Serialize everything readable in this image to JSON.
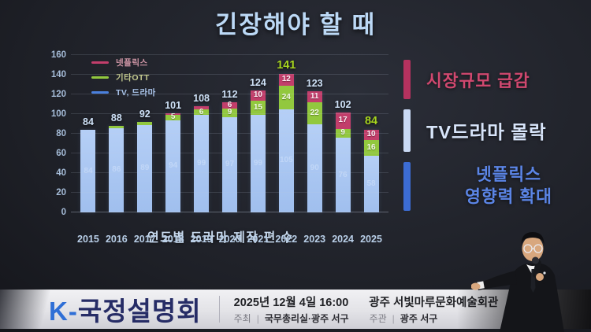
{
  "chart_data": {
    "type": "bar",
    "stacked": true,
    "title": "긴장해야 할 때",
    "xlabel": "연도별 드라마 제작 편 수",
    "ylim": [
      0,
      160
    ],
    "yticks": [
      0,
      20,
      40,
      60,
      80,
      100,
      120,
      140,
      160
    ],
    "grid": true,
    "legend_position": "top-left",
    "categories": [
      "2015",
      "2016",
      "2017",
      "2018",
      "2019",
      "2020",
      "2021",
      "2022",
      "2023",
      "2024",
      "2025"
    ],
    "series": [
      {
        "name": "TV, 드라마",
        "color": "#a9c6f1",
        "label_min": 1,
        "values": [
          84,
          86,
          89,
          94,
          99,
          97,
          99,
          105,
          90,
          76,
          58
        ]
      },
      {
        "name": "기타OTT",
        "color": "#92c83e",
        "label_min": 5,
        "values": [
          0,
          2,
          3,
          5,
          6,
          9,
          15,
          24,
          22,
          9,
          16
        ]
      },
      {
        "name": "넷플릭스",
        "color": "#c23e6b",
        "label_min": 6,
        "values": [
          0,
          0,
          0,
          2,
          3,
          6,
          10,
          12,
          11,
          17,
          10
        ]
      }
    ],
    "totals": [
      84,
      88,
      92,
      101,
      108,
      112,
      124,
      141,
      123,
      102,
      84
    ],
    "total_highlight_indices": [
      7,
      10
    ],
    "total_color": "#cfe2f8",
    "total_highlight_color": "#a6d41e",
    "legend": [
      {
        "name": "넷플릭스",
        "color": "#c23e6b",
        "text_color": "#cf96a6"
      },
      {
        "name": "기타OTT",
        "color": "#92c83e",
        "text_color": "#c3c98e"
      },
      {
        "name": "TV, 드라마",
        "color": "#4a80dd",
        "text_color": "#a9c4ea"
      }
    ]
  },
  "callouts": [
    {
      "label": "시장규모 급감",
      "bar_color": "#b5325f",
      "text_color": "#d1486f"
    },
    {
      "label": "TV드라마 몰락",
      "bar_color": "#c9d9f4",
      "text_color": "#d8e5fa"
    },
    {
      "lines": [
        "넷플릭스",
        "영향력 확대"
      ],
      "bar_color": "#3c6cd3",
      "text_color": "#5b85e6"
    }
  ],
  "banner": {
    "logo_prefix": "K-",
    "logo_prefix_color": "#2f6fd6",
    "logo_text": "국정설명회",
    "logo_text_color": "#262c66",
    "datetime": "2025년 12월 4일 16:00",
    "venue": "광주 서빛마루문화예술회관",
    "host_label": "주최",
    "host": "국무총리실·광주 서구",
    "organizer_label": "주관",
    "organizer": "광주 서구",
    "separator": "|"
  }
}
